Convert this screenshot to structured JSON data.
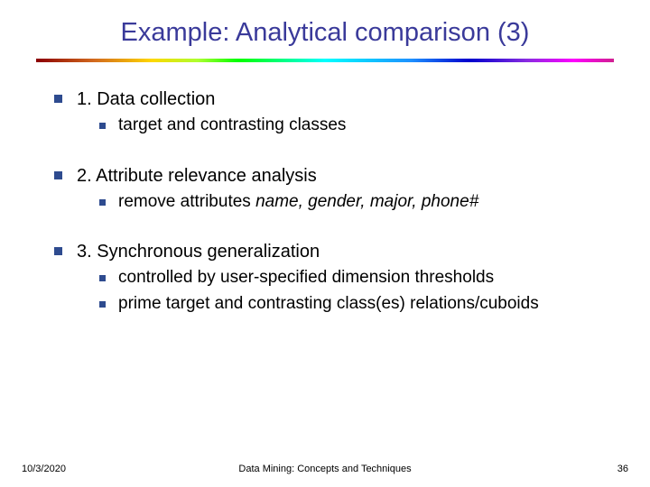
{
  "title": "Example: Analytical comparison (3)",
  "colors": {
    "title": "#3a3a9a",
    "bullet": "#2e4b8f",
    "text": "#000000",
    "background": "#ffffff"
  },
  "items": [
    {
      "label": "1. Data collection",
      "children": [
        {
          "label": "target and contrasting classes"
        }
      ]
    },
    {
      "label": "2. Attribute relevance analysis",
      "children": [
        {
          "prefix": "remove attributes ",
          "italic": "name, gender, major, phone#"
        }
      ]
    },
    {
      "label": "3. Synchronous generalization",
      "children": [
        {
          "label": "controlled by user-specified dimension thresholds"
        },
        {
          "label": "prime target and contrasting class(es) relations/cuboids"
        }
      ]
    }
  ],
  "footer": {
    "date": "10/3/2020",
    "center": "Data Mining: Concepts and Techniques",
    "pageno": "36"
  }
}
